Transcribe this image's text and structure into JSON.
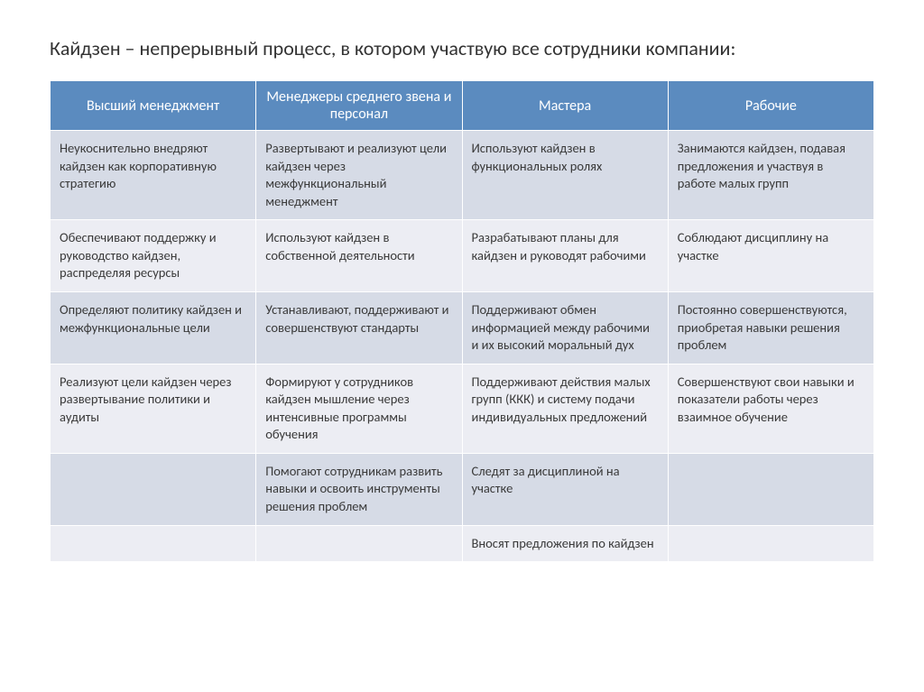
{
  "title": "Кайдзен – непрерывный процесс, в котором участвую все сотрудники компании:",
  "table": {
    "type": "table",
    "header_bg": "#5b8bbf",
    "header_text_color": "#ffffff",
    "row_color_odd": "#d6dbe6",
    "row_color_even": "#ecedf3",
    "border_color": "#ffffff",
    "title_fontsize": 22,
    "header_fontsize": 16,
    "cell_fontsize": 14.5,
    "columns": [
      "Высший менеджмент",
      "Менеджеры среднего звена и персонал",
      "Мастера",
      "Рабочие"
    ],
    "rows": [
      [
        "Неукоснительно внедряют кайдзен как корпоративную стратегию",
        "Развертывают и реализуют цели кайдзен через межфункциональный менеджмент",
        "Используют кайдзен в функциональных ролях",
        "Занимаются кайдзен, подавая предложения и участвуя в работе малых групп"
      ],
      [
        "Обеспечивают поддержку и руководство кайдзен, распределяя ресурсы",
        "Используют кайдзен в собственной деятельности",
        "Разрабатывают планы для кайдзен и руководят рабочими",
        "Соблюдают дисциплину на участке"
      ],
      [
        "Определяют политику кайдзен и межфункциональные цели",
        "Устанавливают, поддерживают и совершенствуют стандарты",
        "Поддерживают обмен информацией между рабочими и их высокий моральный дух",
        "Постоянно совершенствуются, приобретая навыки решения проблем"
      ],
      [
        "Реализуют цели кайдзен через развертывание политики и аудиты",
        "Формируют у сотрудников кайдзен мышление через интенсивные программы обучения",
        "Поддерживают действия малых групп (ККК) и систему подачи индивидуальных предложений",
        "Совершенствуют свои навыки и показатели работы через взаимное обучение"
      ],
      [
        "",
        "Помогают сотрудникам развить навыки и освоить инструменты решения проблем",
        "Следят за дисциплиной на участке",
        ""
      ],
      [
        "",
        "",
        "Вносят предложения по кайдзен",
        ""
      ]
    ]
  }
}
